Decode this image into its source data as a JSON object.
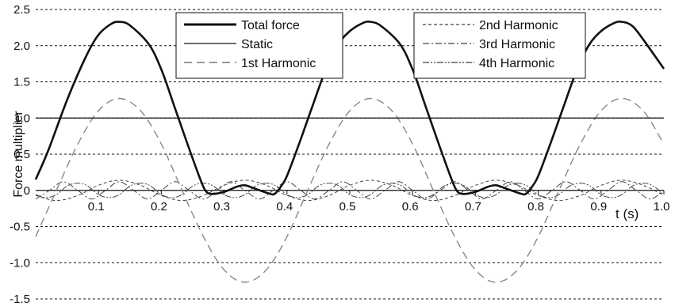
{
  "chart_data": {
    "type": "line",
    "ylabel": "Force multiplier",
    "xlabel": "t (s)",
    "xlim": [
      0,
      1.0
    ],
    "ylim": [
      -1.5,
      2.5
    ],
    "grid": "horizontal dashed",
    "ytick_labels": [
      "2.5",
      "2.0",
      "1.5",
      "1.0",
      "0.5",
      "0",
      "-0.5",
      "-1.0",
      "-1.5"
    ],
    "ytick_values": [
      2.5,
      2.0,
      1.5,
      1.0,
      0.5,
      0,
      -0.5,
      -1.0,
      -1.5
    ],
    "xtick_labels": [
      "0.1",
      "0.2",
      "0.3",
      "0.4",
      "0.5",
      "0.6",
      "0.7",
      "0.8",
      "0.9",
      "1.0"
    ],
    "xtick_values": [
      0.1,
      0.2,
      0.3,
      0.4,
      0.5,
      0.6,
      0.7,
      0.8,
      0.9,
      1.0
    ],
    "legend_left": [
      "Total force",
      "Static",
      "1st Harmonic"
    ],
    "legend_right": [
      "2nd Harmonic",
      "3rd Harmonic",
      "4th Harmonic"
    ],
    "series": [
      {
        "name": "Total force",
        "style": "solid-thick",
        "x": [
          0,
          0.02,
          0.05,
          0.08,
          0.1,
          0.12,
          0.133,
          0.15,
          0.18,
          0.2,
          0.22,
          0.24,
          0.26,
          0.27,
          0.28,
          0.3,
          0.32,
          0.333,
          0.35,
          0.37,
          0.38,
          0.39,
          0.4,
          0.42,
          0.44,
          0.46,
          0.48,
          0.5,
          0.52,
          0.533,
          0.55,
          0.58,
          0.6,
          0.62,
          0.64,
          0.66,
          0.67,
          0.68,
          0.7,
          0.72,
          0.733,
          0.75,
          0.77,
          0.78,
          0.79,
          0.8,
          0.82,
          0.84,
          0.86,
          0.88,
          0.9,
          0.92,
          0.933,
          0.95,
          0.97,
          1.0
        ],
        "y": [
          0.15,
          0.55,
          1.25,
          1.85,
          2.15,
          2.3,
          2.33,
          2.28,
          2.02,
          1.67,
          1.18,
          0.68,
          0.2,
          0.0,
          -0.05,
          -0.02,
          0.05,
          0.07,
          0.02,
          -0.04,
          -0.05,
          0.05,
          0.2,
          0.66,
          1.15,
          1.63,
          2.0,
          2.2,
          2.31,
          2.33,
          2.27,
          2.02,
          1.67,
          1.18,
          0.68,
          0.2,
          0.0,
          -0.05,
          -0.02,
          0.05,
          0.07,
          0.02,
          -0.04,
          -0.05,
          0.05,
          0.2,
          0.66,
          1.15,
          1.63,
          2.0,
          2.2,
          2.31,
          2.33,
          2.27,
          2.05,
          1.68
        ]
      },
      {
        "name": "Static",
        "style": "solid-thin",
        "x": [
          0,
          1.0
        ],
        "y": [
          1.0,
          1.0
        ]
      },
      {
        "name": "1st Harmonic",
        "style": "long-dash",
        "x": [
          0,
          0.033,
          0.067,
          0.1,
          0.133,
          0.167,
          0.2,
          0.233,
          0.267,
          0.3,
          0.333,
          0.367,
          0.4,
          0.433,
          0.467,
          0.5,
          0.533,
          0.567,
          0.6,
          0.633,
          0.667,
          0.7,
          0.733,
          0.767,
          0.8,
          0.833,
          0.867,
          0.9,
          0.933,
          0.967,
          1.0
        ],
        "y": [
          -0.64,
          0.0,
          0.64,
          1.1,
          1.27,
          1.1,
          0.64,
          0.0,
          -0.64,
          -1.1,
          -1.27,
          -1.1,
          -0.64,
          0.0,
          0.64,
          1.1,
          1.27,
          1.1,
          0.64,
          0.0,
          -0.64,
          -1.1,
          -1.27,
          -1.1,
          -0.64,
          0.0,
          0.64,
          1.1,
          1.27,
          1.1,
          0.64
        ]
      },
      {
        "name": "2nd Harmonic",
        "style": "short-dash",
        "x": [
          0,
          0.033,
          0.067,
          0.1,
          0.133,
          0.167,
          0.2,
          0.233,
          0.267,
          0.3,
          0.333,
          0.367,
          0.4,
          0.433,
          0.467,
          0.5,
          0.533,
          0.567,
          0.6,
          0.633,
          0.667,
          0.7,
          0.733,
          0.767,
          0.8,
          0.833,
          0.867,
          0.9,
          0.933,
          0.967,
          1.0
        ],
        "y": [
          -0.07,
          -0.14,
          -0.07,
          0.07,
          0.14,
          0.07,
          -0.07,
          -0.14,
          -0.07,
          0.07,
          0.14,
          0.07,
          -0.07,
          -0.14,
          -0.07,
          0.07,
          0.14,
          0.07,
          -0.07,
          -0.14,
          -0.07,
          0.07,
          0.14,
          0.07,
          -0.07,
          -0.14,
          -0.07,
          0.07,
          0.14,
          0.07,
          -0.07
        ]
      },
      {
        "name": "3rd Harmonic",
        "style": "dash-dot",
        "x": [
          0,
          0.022,
          0.044,
          0.067,
          0.089,
          0.111,
          0.133,
          0.156,
          0.178,
          0.2,
          0.222,
          0.244,
          0.267,
          0.289,
          0.311,
          0.333,
          0.356,
          0.378,
          0.4,
          0.422,
          0.444,
          0.467,
          0.489,
          0.511,
          0.533,
          0.556,
          0.578,
          0.6,
          0.622,
          0.644,
          0.667,
          0.689,
          0.711,
          0.733,
          0.756,
          0.778,
          0.8,
          0.822,
          0.844,
          0.867,
          0.889,
          0.911,
          0.933,
          0.956,
          0.978,
          1.0
        ],
        "y": [
          -0.12,
          0.0,
          0.12,
          0.0,
          -0.12,
          0.0,
          0.12,
          0.0,
          -0.12,
          0.0,
          0.12,
          0.0,
          -0.12,
          0.0,
          0.12,
          0.0,
          -0.12,
          0.0,
          0.12,
          0.0,
          -0.12,
          0.0,
          0.12,
          0.0,
          -0.12,
          0.0,
          0.12,
          0.0,
          -0.12,
          0.0,
          0.12,
          0.0,
          -0.12,
          0.0,
          0.12,
          0.0,
          -0.12,
          0.0,
          0.12,
          0.0,
          -0.12,
          0.0,
          0.12,
          0.0,
          -0.12,
          0.0
        ]
      },
      {
        "name": "4th Harmonic",
        "style": "dash-dot-dot",
        "x": [
          0,
          0.017,
          0.033,
          0.05,
          0.067,
          0.083,
          0.1,
          0.117,
          0.133,
          0.15,
          0.167,
          0.183,
          0.2,
          0.217,
          0.233,
          0.25,
          0.267,
          0.283,
          0.3,
          0.317,
          0.333,
          0.35,
          0.367,
          0.383,
          0.4,
          0.417,
          0.433,
          0.45,
          0.467,
          0.483,
          0.5,
          0.517,
          0.533,
          0.55,
          0.567,
          0.583,
          0.6,
          0.617,
          0.633,
          0.65,
          0.667,
          0.683,
          0.7,
          0.717,
          0.733,
          0.75,
          0.767,
          0.783,
          0.8,
          0.817,
          0.833,
          0.85,
          0.867,
          0.883,
          0.9,
          0.917,
          0.933,
          0.95,
          0.967,
          0.983,
          1.0
        ],
        "y": [
          -0.06,
          -0.1,
          -0.06,
          0.06,
          0.1,
          0.06,
          -0.06,
          -0.1,
          -0.06,
          0.06,
          0.1,
          0.06,
          -0.06,
          -0.1,
          -0.06,
          0.06,
          0.1,
          0.06,
          -0.06,
          -0.1,
          -0.06,
          0.06,
          0.1,
          0.06,
          -0.06,
          -0.1,
          -0.06,
          0.06,
          0.1,
          0.06,
          -0.06,
          -0.1,
          -0.06,
          0.06,
          0.1,
          0.06,
          -0.06,
          -0.1,
          -0.06,
          0.06,
          0.1,
          0.06,
          -0.06,
          -0.1,
          -0.06,
          0.06,
          0.1,
          0.06,
          -0.06,
          -0.1,
          -0.06,
          0.06,
          0.1,
          0.06,
          -0.06,
          -0.1,
          -0.06,
          0.06,
          0.1,
          0.06,
          -0.06
        ]
      }
    ]
  }
}
